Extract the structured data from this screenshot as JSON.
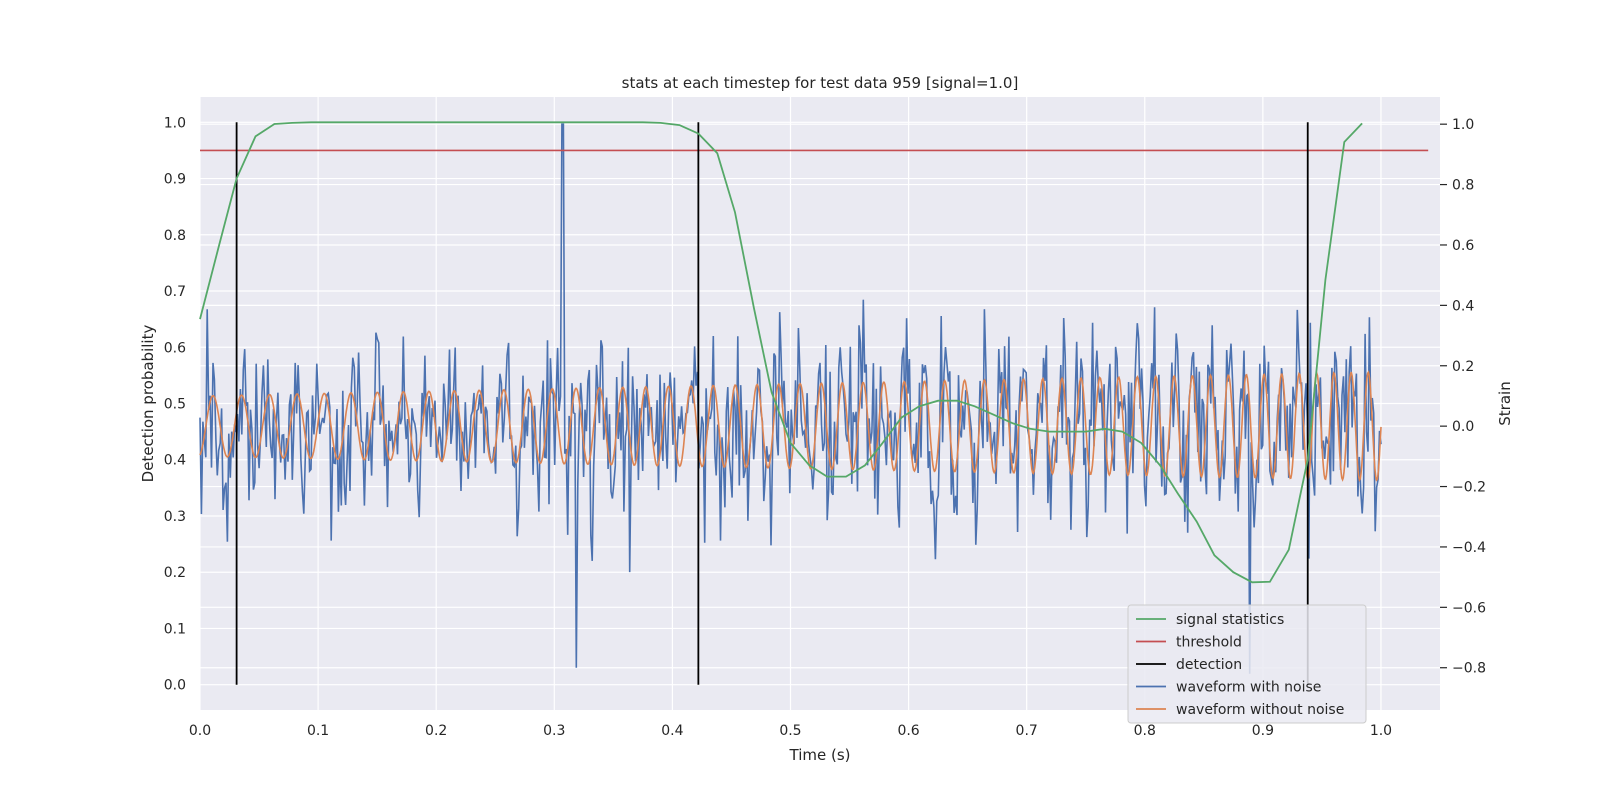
{
  "chart_data": {
    "type": "line",
    "title": "stats at each timestep for test data 959 [signal=1.0]",
    "xlabel": "Time (s)",
    "ylabel_left": "Detection probability",
    "ylabel_right": "Strain",
    "xlim": [
      0.0,
      1.05
    ],
    "ylim_left": [
      -0.045,
      1.045
    ],
    "ylim_right": [
      -0.94,
      1.09
    ],
    "x_ticks": [
      "0.0",
      "0.1",
      "0.2",
      "0.3",
      "0.4",
      "0.5",
      "0.6",
      "0.7",
      "0.8",
      "0.9",
      "1.0"
    ],
    "y_ticks_left": [
      "0.0",
      "0.1",
      "0.2",
      "0.3",
      "0.4",
      "0.5",
      "0.6",
      "0.7",
      "0.8",
      "0.9",
      "1.0"
    ],
    "y_ticks_right": [
      "−0.8",
      "−0.6",
      "−0.4",
      "−0.2",
      "0.0",
      "0.2",
      "0.4",
      "0.6",
      "0.8",
      "1.0"
    ],
    "grid": true,
    "legend_position": "bottom-right",
    "colors": {
      "background": "#eaeaf2",
      "grid": "#ffffff",
      "signal_statistics": "#55a868",
      "threshold": "#c44e52",
      "detection": "#000000",
      "waveform_with_noise": "#4c72b0",
      "waveform_without_noise": "#dd8452"
    },
    "series": [
      {
        "name": "signal statistics",
        "axis": "left",
        "x": [
          0.0,
          0.016,
          0.031,
          0.047,
          0.063,
          0.078,
          0.094,
          0.2,
          0.3,
          0.375,
          0.39,
          0.406,
          0.422,
          0.438,
          0.453,
          0.469,
          0.484,
          0.5,
          0.516,
          0.531,
          0.547,
          0.563,
          0.578,
          0.594,
          0.609,
          0.625,
          0.641,
          0.656,
          0.672,
          0.688,
          0.703,
          0.719,
          0.734,
          0.75,
          0.766,
          0.781,
          0.797,
          0.813,
          0.828,
          0.844,
          0.859,
          0.875,
          0.891,
          0.906,
          0.922,
          0.938,
          0.953,
          0.969,
          0.984
        ],
        "y": [
          0.65,
          0.78,
          0.9,
          0.975,
          0.997,
          0.999,
          1.0,
          1.0,
          1.0,
          1.0,
          0.999,
          0.995,
          0.98,
          0.945,
          0.84,
          0.67,
          0.52,
          0.43,
          0.39,
          0.37,
          0.37,
          0.39,
          0.43,
          0.475,
          0.495,
          0.505,
          0.505,
          0.495,
          0.48,
          0.465,
          0.455,
          0.45,
          0.45,
          0.45,
          0.455,
          0.45,
          0.43,
          0.39,
          0.34,
          0.29,
          0.23,
          0.2,
          0.182,
          0.183,
          0.24,
          0.4,
          0.72,
          0.965,
          0.998
        ]
      },
      {
        "name": "threshold",
        "axis": "left",
        "x": [
          0.0,
          1.04
        ],
        "y": [
          0.95,
          0.95
        ]
      },
      {
        "name": "detection",
        "axis": "left",
        "x": [
          0.031,
          0.422,
          0.938
        ],
        "y_range": [
          0.0,
          1.0
        ]
      },
      {
        "name": "waveform with noise",
        "axis": "right",
        "description_values": "noise samples, amplitude up to about +1.0 / -0.8 strain",
        "x_start": 0.0,
        "x_end": 1.0,
        "n_samples": 820,
        "spike_x": [
          0.307,
          0.319,
          0.889
        ],
        "spike_y": [
          1.0,
          -0.8,
          -0.82
        ]
      },
      {
        "name": "waveform without noise",
        "axis": "right",
        "x_start": 0.0,
        "x_end": 1.0,
        "amplitude_start": 0.1,
        "amplitude_end": 0.18,
        "cycles": 48
      }
    ]
  }
}
